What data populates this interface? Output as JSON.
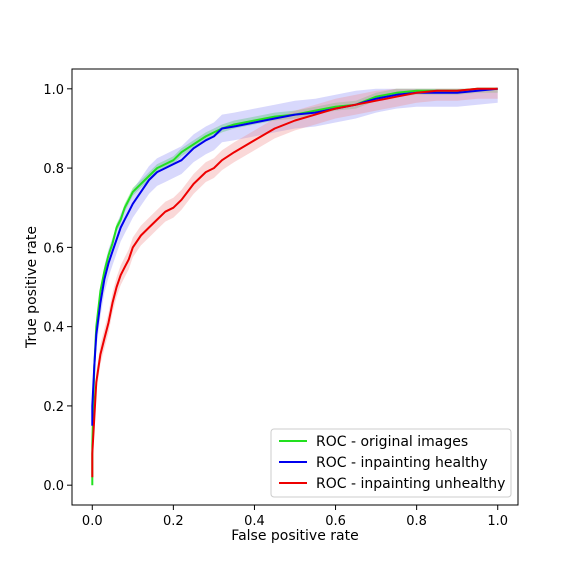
{
  "chart_data": {
    "type": "line",
    "title": "",
    "xlabel": "False positive rate",
    "ylabel": "True positive rate",
    "xlim": [
      -0.05,
      1.05
    ],
    "ylim": [
      -0.05,
      1.05
    ],
    "xticks": [
      "0.0",
      "0.2",
      "0.4",
      "0.6",
      "0.8",
      "1.0"
    ],
    "yticks": [
      "0.0",
      "0.2",
      "0.4",
      "0.6",
      "0.8",
      "1.0"
    ],
    "xtick_values": [
      0,
      0.2,
      0.4,
      0.6,
      0.8,
      1.0
    ],
    "ytick_values": [
      0,
      0.2,
      0.4,
      0.6,
      0.8,
      1.0
    ],
    "grid": false,
    "legend_position": "lower-right",
    "series": [
      {
        "name": "ROC - original images",
        "color": "#22e01f",
        "band_color": "#22e01f",
        "band_width": 0.01,
        "x": [
          0,
          0,
          0.005,
          0.01,
          0.02,
          0.03,
          0.04,
          0.05,
          0.06,
          0.07,
          0.08,
          0.09,
          0.1,
          0.12,
          0.14,
          0.16,
          0.18,
          0.2,
          0.22,
          0.25,
          0.28,
          0.3,
          0.32,
          0.35,
          0.4,
          0.45,
          0.5,
          0.55,
          0.6,
          0.65,
          0.7,
          0.75,
          0.8,
          0.85,
          0.9,
          0.95,
          1.0
        ],
        "y": [
          0.0,
          0.1,
          0.3,
          0.4,
          0.49,
          0.54,
          0.58,
          0.61,
          0.65,
          0.67,
          0.7,
          0.72,
          0.74,
          0.76,
          0.78,
          0.8,
          0.81,
          0.82,
          0.84,
          0.86,
          0.88,
          0.89,
          0.9,
          0.91,
          0.92,
          0.93,
          0.935,
          0.945,
          0.955,
          0.96,
          0.98,
          0.99,
          0.995,
          0.995,
          0.995,
          1.0,
          1.0
        ]
      },
      {
        "name": "ROC - inpainting healthy",
        "color": "#0000ee",
        "band_color": "#8f8ff5",
        "band_width": 0.035,
        "x": [
          0,
          0,
          0.005,
          0.01,
          0.02,
          0.03,
          0.04,
          0.05,
          0.06,
          0.07,
          0.08,
          0.09,
          0.1,
          0.12,
          0.14,
          0.16,
          0.18,
          0.2,
          0.22,
          0.25,
          0.28,
          0.3,
          0.32,
          0.35,
          0.4,
          0.45,
          0.5,
          0.55,
          0.6,
          0.65,
          0.7,
          0.75,
          0.8,
          0.85,
          0.9,
          0.95,
          1.0
        ],
        "y": [
          0.15,
          0.2,
          0.3,
          0.38,
          0.46,
          0.52,
          0.56,
          0.59,
          0.62,
          0.65,
          0.67,
          0.69,
          0.71,
          0.74,
          0.77,
          0.79,
          0.8,
          0.81,
          0.82,
          0.85,
          0.87,
          0.88,
          0.9,
          0.905,
          0.915,
          0.925,
          0.935,
          0.94,
          0.95,
          0.96,
          0.975,
          0.985,
          0.99,
          0.99,
          0.99,
          0.995,
          1.0
        ]
      },
      {
        "name": "ROC - inpainting unhealthy",
        "color": "#ee0000",
        "band_color": "#f28f8f",
        "band_width": 0.025,
        "x": [
          0,
          0,
          0.005,
          0.01,
          0.02,
          0.03,
          0.04,
          0.05,
          0.06,
          0.07,
          0.08,
          0.09,
          0.1,
          0.12,
          0.14,
          0.16,
          0.18,
          0.2,
          0.22,
          0.25,
          0.28,
          0.3,
          0.32,
          0.35,
          0.4,
          0.45,
          0.5,
          0.55,
          0.6,
          0.65,
          0.7,
          0.75,
          0.8,
          0.85,
          0.9,
          0.95,
          1.0
        ],
        "y": [
          0.02,
          0.08,
          0.17,
          0.26,
          0.33,
          0.37,
          0.41,
          0.46,
          0.5,
          0.53,
          0.55,
          0.57,
          0.6,
          0.63,
          0.65,
          0.67,
          0.69,
          0.7,
          0.72,
          0.76,
          0.79,
          0.8,
          0.82,
          0.84,
          0.87,
          0.9,
          0.92,
          0.935,
          0.95,
          0.96,
          0.97,
          0.98,
          0.99,
          0.995,
          0.995,
          1.0,
          1.0
        ]
      }
    ]
  }
}
